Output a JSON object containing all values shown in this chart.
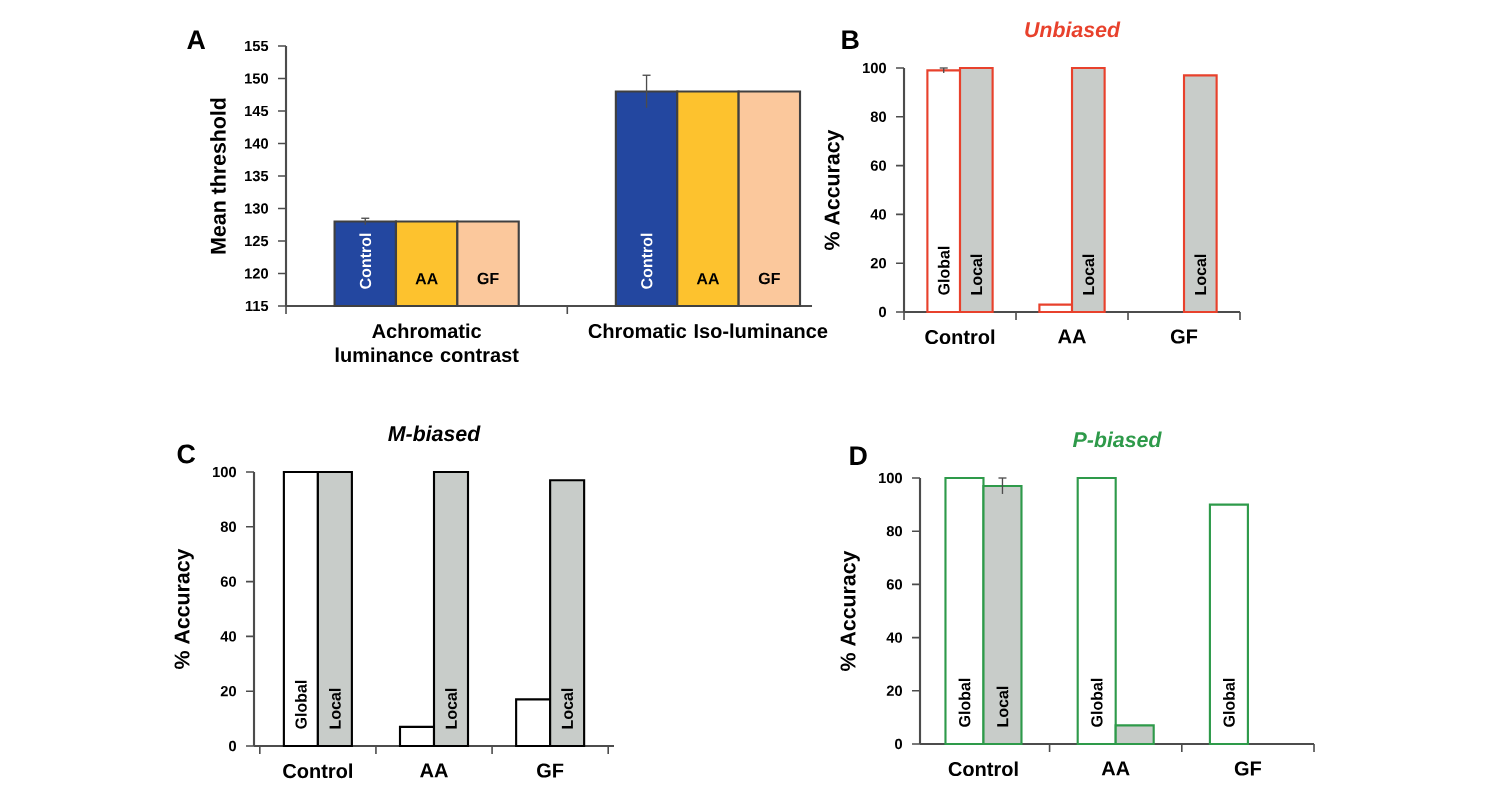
{
  "chart_data": [
    {
      "type": "bar",
      "ylabel": "Mean threshold",
      "annotations": [
        "A"
      ],
      "categories": [
        "Achromatic luminance contrast",
        "Chromatic Iso-luminance"
      ],
      "ylim": [
        115,
        155
      ],
      "yticks": [
        115,
        120,
        125,
        130,
        135,
        140,
        145,
        150,
        155
      ],
      "series": [
        {
          "name": "Control",
          "color": "#2347a0",
          "values": [
            128,
            148
          ],
          "errors": [
            0.5,
            2.5
          ]
        },
        {
          "name": "AA",
          "color": "#fdc22e",
          "values": [
            128,
            148
          ]
        },
        {
          "name": "GF",
          "color": "#fbc89c",
          "values": [
            128,
            148
          ]
        }
      ]
    },
    {
      "type": "bar",
      "title": "Unbiased",
      "ylabel": "% Accuracy",
      "annotations": [
        "B"
      ],
      "categories": [
        "Control",
        "AA",
        "GF"
      ],
      "ylim": [
        0,
        100
      ],
      "yticks": [
        0,
        20,
        40,
        60,
        80,
        100
      ],
      "series": [
        {
          "name": "Global",
          "color": "#ffffff",
          "values": [
            99,
            3,
            null
          ],
          "errors": [
            1,
            null,
            null
          ]
        },
        {
          "name": "Local",
          "color": "#c8ccc9",
          "values": [
            100,
            100,
            97
          ]
        }
      ]
    },
    {
      "type": "bar",
      "title": "M-biased",
      "ylabel": "% Accuracy",
      "annotations": [
        "C"
      ],
      "categories": [
        "Control",
        "AA",
        "GF"
      ],
      "ylim": [
        0,
        100
      ],
      "yticks": [
        0,
        20,
        40,
        60,
        80,
        100
      ],
      "series": [
        {
          "name": "Global",
          "color": "#ffffff",
          "values": [
            100,
            7,
            17
          ]
        },
        {
          "name": "Local",
          "color": "#c8ccc9",
          "values": [
            100,
            100,
            97
          ]
        }
      ]
    },
    {
      "type": "bar",
      "title": "P-biased",
      "ylabel": "% Accuracy",
      "annotations": [
        "D"
      ],
      "categories": [
        "Control",
        "AA",
        "GF"
      ],
      "ylim": [
        0,
        100
      ],
      "yticks": [
        0,
        20,
        40,
        60,
        80,
        100
      ],
      "series": [
        {
          "name": "Global",
          "color": "#ffffff",
          "values": [
            100,
            100,
            90
          ]
        },
        {
          "name": "Local",
          "color": "#c8ccc9",
          "values": [
            97,
            7,
            null
          ],
          "errors": [
            3,
            null,
            null
          ]
        }
      ]
    }
  ]
}
